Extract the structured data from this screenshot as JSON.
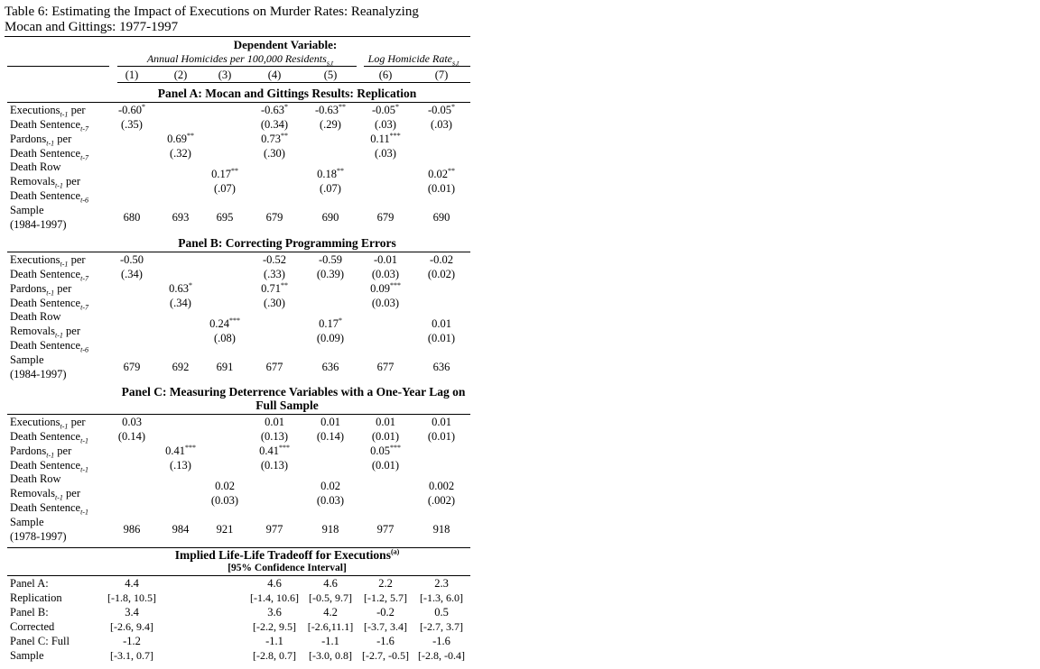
{
  "title_line1": "Table 6: Estimating the Impact of Executions on Murder Rates: Reanalyzing",
  "title_line2": "Mocan and Gittings: 1977-1997",
  "header": {
    "dependent": "Dependent Variable:",
    "group1": "Annual Homicides per 100,000 Residents",
    "group1_sub": "s,t",
    "group2": "Log Homicide Rate",
    "group2_sub": "s,t",
    "cols": [
      "(1)",
      "(2)",
      "(3)",
      "(4)",
      "(5)",
      "(6)",
      "(7)"
    ]
  },
  "labels": {
    "executions": "Executions",
    "pardons": "Pardons",
    "per": "per",
    "death_sentence": "Death Sentence",
    "death_row": "Death Row",
    "removals": "Removals",
    "sample": "Sample",
    "sub_t1": "t-1",
    "sub_t7": "t-7",
    "sub_t6": "t-6"
  },
  "panelA": {
    "title": "Panel A: Mocan and Gittings Results: Replication",
    "sample_years": "(1984-1997)",
    "exec_coef": [
      "-0.60",
      "",
      "",
      "-0.63",
      "-0.63",
      "-0.05",
      "-0.05"
    ],
    "exec_stars": [
      "*",
      "",
      "",
      "*",
      "**",
      "*",
      "*"
    ],
    "exec_se": [
      "(.35)",
      "",
      "",
      "(0.34)",
      "(.29)",
      "(.03)",
      "(.03)"
    ],
    "pard_coef": [
      "",
      "0.69",
      "",
      "0.73",
      "",
      "0.11",
      ""
    ],
    "pard_stars": [
      "",
      "**",
      "",
      "**",
      "",
      "***",
      ""
    ],
    "pard_se": [
      "",
      "(.32)",
      "",
      "(.30)",
      "",
      "(.03)",
      ""
    ],
    "rem_coef": [
      "",
      "",
      "0.17",
      "",
      "0.18",
      "",
      "0.02"
    ],
    "rem_stars": [
      "",
      "",
      "**",
      "",
      "**",
      "",
      "**"
    ],
    "rem_se": [
      "",
      "",
      "(.07)",
      "",
      "(.07)",
      "",
      "(0.01)"
    ],
    "sample": [
      "680",
      "693",
      "695",
      "679",
      "690",
      "679",
      "690"
    ]
  },
  "panelB": {
    "title": "Panel B: Correcting Programming Errors",
    "sample_years": "(1984-1997)",
    "exec_coef": [
      "-0.50",
      "",
      "",
      "-0.52",
      "-0.59",
      "-0.01",
      "-0.02"
    ],
    "exec_stars": [
      "",
      "",
      "",
      "",
      "",
      "",
      ""
    ],
    "exec_se": [
      "(.34)",
      "",
      "",
      "(.33)",
      "(0.39)",
      "(0.03)",
      "(0.02)"
    ],
    "pard_coef": [
      "",
      "0.63",
      "",
      "0.71",
      "",
      "0.09",
      ""
    ],
    "pard_stars": [
      "",
      "*",
      "",
      "**",
      "",
      "***",
      ""
    ],
    "pard_se": [
      "",
      "(.34)",
      "",
      "(.30)",
      "",
      "(0.03)",
      ""
    ],
    "rem_coef": [
      "",
      "",
      "0.24",
      "",
      "0.17",
      "",
      "0.01"
    ],
    "rem_stars": [
      "",
      "",
      "***",
      "",
      "*",
      "",
      ""
    ],
    "rem_se": [
      "",
      "",
      "(.08)",
      "",
      "(0.09)",
      "",
      "(0.01)"
    ],
    "sample": [
      "679",
      "692",
      "691",
      "677",
      "636",
      "677",
      "636"
    ]
  },
  "panelC": {
    "title_line1": "Panel C: Measuring Deterrence Variables with a One-Year Lag on",
    "title_line2": "Full Sample",
    "sample_years": "(1978-1997)",
    "exec_coef": [
      "0.03",
      "",
      "",
      "0.01",
      "0.01",
      "0.01",
      "0.01"
    ],
    "exec_stars": [
      "",
      "",
      "",
      "",
      "",
      "",
      ""
    ],
    "exec_se": [
      "(0.14)",
      "",
      "",
      "(0.13)",
      "(0.14)",
      "(0.01)",
      "(0.01)"
    ],
    "pard_coef": [
      "",
      "0.41",
      "",
      "0.41",
      "",
      "0.05",
      ""
    ],
    "pard_stars": [
      "",
      "***",
      "",
      "***",
      "",
      "***",
      ""
    ],
    "pard_se": [
      "",
      "(.13)",
      "",
      "(0.13)",
      "",
      "(0.01)",
      ""
    ],
    "rem_coef": [
      "",
      "",
      "0.02",
      "",
      "0.02",
      "",
      "0.002"
    ],
    "rem_stars": [
      "",
      "",
      "",
      "",
      "",
      "",
      ""
    ],
    "rem_se": [
      "",
      "",
      "(0.03)",
      "",
      "(0.03)",
      "",
      "(.002)"
    ],
    "sample": [
      "986",
      "984",
      "921",
      "977",
      "918",
      "977",
      "918"
    ]
  },
  "tradeoff": {
    "title": "Implied Life-Life Tradeoff for Executions",
    "title_sup": "(a)",
    "subtitle": "[95% Confidence Interval]",
    "rows": [
      {
        "label1": "Panel A:",
        "label2": "Replication",
        "vals": [
          "4.4",
          "",
          "",
          "4.6",
          "4.6",
          "2.2",
          "2.3"
        ],
        "cis": [
          "[-1.8, 10.5]",
          "",
          "",
          "[-1.4, 10.6]",
          "[-0.5, 9.7]",
          "[-1.2, 5.7]",
          "[-1.3, 6.0]"
        ]
      },
      {
        "label1": "Panel B:",
        "label2": "Corrected",
        "vals": [
          "3.4",
          "",
          "",
          "3.6",
          "4.2",
          "-0.2",
          "0.5"
        ],
        "cis": [
          "[-2.6, 9.4]",
          "",
          "",
          "[-2.2, 9.5]",
          "[-2.6,11.1]",
          "[-3.7, 3.4]",
          "[-2.7, 3.7]"
        ]
      },
      {
        "label1": "Panel C: Full",
        "label2": "Sample",
        "vals": [
          "-1.2",
          "",
          "",
          "-1.1",
          "-1.1",
          "-1.6",
          "-1.6"
        ],
        "cis": [
          "[-3.1, 0.7]",
          "",
          "",
          "[-2.8, 0.7]",
          "[-3.0, 0.8]",
          "[-2.7, -0.5]",
          "[-2.8, -0.4]"
        ]
      }
    ]
  }
}
